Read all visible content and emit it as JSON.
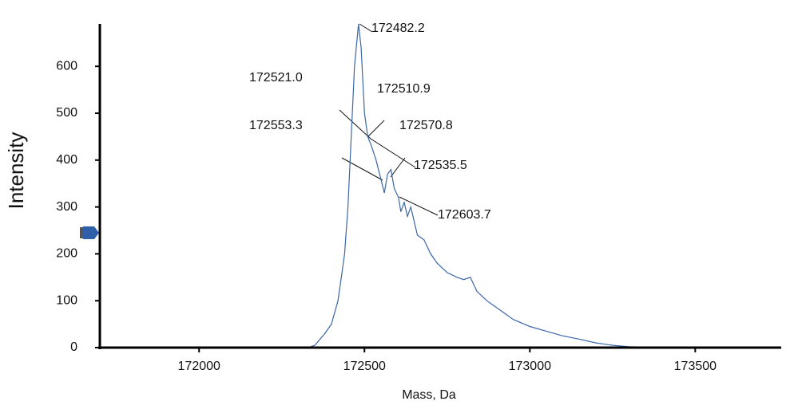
{
  "chart_data": {
    "type": "line",
    "x_label": "Mass, Da",
    "y_label": "Intensity",
    "xlim": [
      171700,
      173760
    ],
    "ylim": [
      0,
      700
    ],
    "xticks": [
      172000,
      172500,
      173000,
      173500
    ],
    "yticks": [
      0,
      100,
      200,
      300,
      400,
      500,
      600
    ],
    "series": [
      {
        "color": "#3a66a8",
        "x": [
          171700,
          172330,
          172350,
          172380,
          172400,
          172420,
          172430,
          172440,
          172450,
          172460,
          172470,
          172482,
          172490,
          172500,
          172510,
          172521,
          172535,
          172553,
          172560,
          172570,
          172580,
          172590,
          172603,
          172610,
          172620,
          172630,
          172640,
          172650,
          172660,
          172680,
          172700,
          172720,
          172750,
          172780,
          172800,
          172820,
          172840,
          172870,
          172900,
          172950,
          173000,
          173050,
          173100,
          173150,
          173200,
          173250,
          173300,
          173350,
          173400,
          173760
        ],
        "values": [
          0,
          0,
          5,
          30,
          50,
          100,
          150,
          200,
          300,
          450,
          600,
          690,
          640,
          500,
          450,
          430,
          400,
          350,
          330,
          370,
          380,
          340,
          320,
          290,
          310,
          280,
          300,
          270,
          240,
          230,
          200,
          180,
          160,
          150,
          145,
          150,
          120,
          100,
          85,
          60,
          45,
          35,
          25,
          18,
          10,
          5,
          2,
          1,
          0,
          0
        ]
      }
    ],
    "annotations": [
      "172482.2",
      "172521.0",
      "172510.9",
      "172553.3",
      "172570.8",
      "172535.5",
      "172603.7"
    ]
  }
}
